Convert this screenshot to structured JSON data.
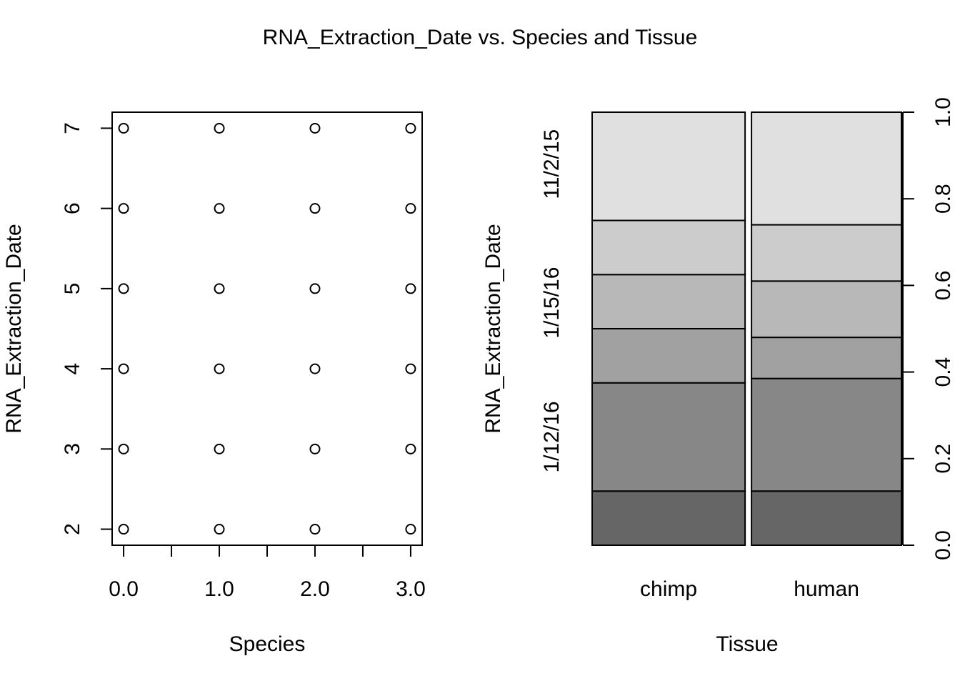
{
  "title": "RNA_Extraction_Date vs. Species and Tissue",
  "colors": {
    "background": "#ffffff",
    "ink": "#000000"
  },
  "chart_data": [
    {
      "type": "scatter",
      "xlabel": "Species",
      "ylabel": "RNA_Extraction_Date",
      "xlim": [
        -0.12,
        3.12
      ],
      "ylim": [
        1.8,
        7.2
      ],
      "x_ticks": [
        0,
        0.5,
        1,
        1.5,
        2,
        2.5,
        3
      ],
      "x_tick_labels": [
        {
          "value": 0,
          "label": "0.0"
        },
        {
          "value": 1,
          "label": "1.0"
        },
        {
          "value": 2,
          "label": "2.0"
        },
        {
          "value": 3,
          "label": "3.0"
        }
      ],
      "y_ticks": [
        2,
        3,
        4,
        5,
        6,
        7
      ],
      "y_tick_labels": [
        "2",
        "3",
        "4",
        "5",
        "6",
        "7"
      ],
      "x": [
        0,
        0,
        0,
        0,
        0,
        0,
        1,
        1,
        1,
        1,
        1,
        1,
        2,
        2,
        2,
        2,
        2,
        2,
        3,
        3,
        3,
        3,
        3,
        3
      ],
      "y": [
        2,
        3,
        4,
        5,
        6,
        7,
        2,
        3,
        4,
        5,
        6,
        7,
        2,
        3,
        4,
        5,
        6,
        7,
        2,
        3,
        4,
        5,
        6,
        7
      ],
      "grid": false
    },
    {
      "type": "bar",
      "subtype": "spineplot",
      "xlabel": "Tissue",
      "ylabel": "RNA_Extraction_Date",
      "categories": [
        "chimp",
        "human"
      ],
      "column_widths": [
        0.505,
        0.495
      ],
      "y_axis_side": "right",
      "ylim": [
        0,
        1
      ],
      "y_ticks": [
        0,
        0.2,
        0.4,
        0.6,
        0.8,
        1
      ],
      "y_tick_labels": [
        "0.0",
        "0.2",
        "0.4",
        "0.6",
        "0.8",
        "1.0"
      ],
      "level_labels": [
        {
          "label": "1/12/16",
          "position": 0.25
        },
        {
          "label": "1/15/16",
          "position": 0.56
        },
        {
          "label": "11/2/15",
          "position": 0.88
        }
      ],
      "level_fills": [
        "#666666",
        "#878787",
        "#a1a1a1",
        "#b8b8b8",
        "#cccccc",
        "#e0e0e0"
      ],
      "series": [
        {
          "values": [
            0.125,
            0.125
          ]
        },
        {
          "values": [
            0.25,
            0.26
          ]
        },
        {
          "values": [
            0.125,
            0.095
          ]
        },
        {
          "values": [
            0.125,
            0.13
          ]
        },
        {
          "values": [
            0.125,
            0.13
          ]
        },
        {
          "values": [
            0.25,
            0.26
          ]
        }
      ],
      "grid": false
    }
  ]
}
